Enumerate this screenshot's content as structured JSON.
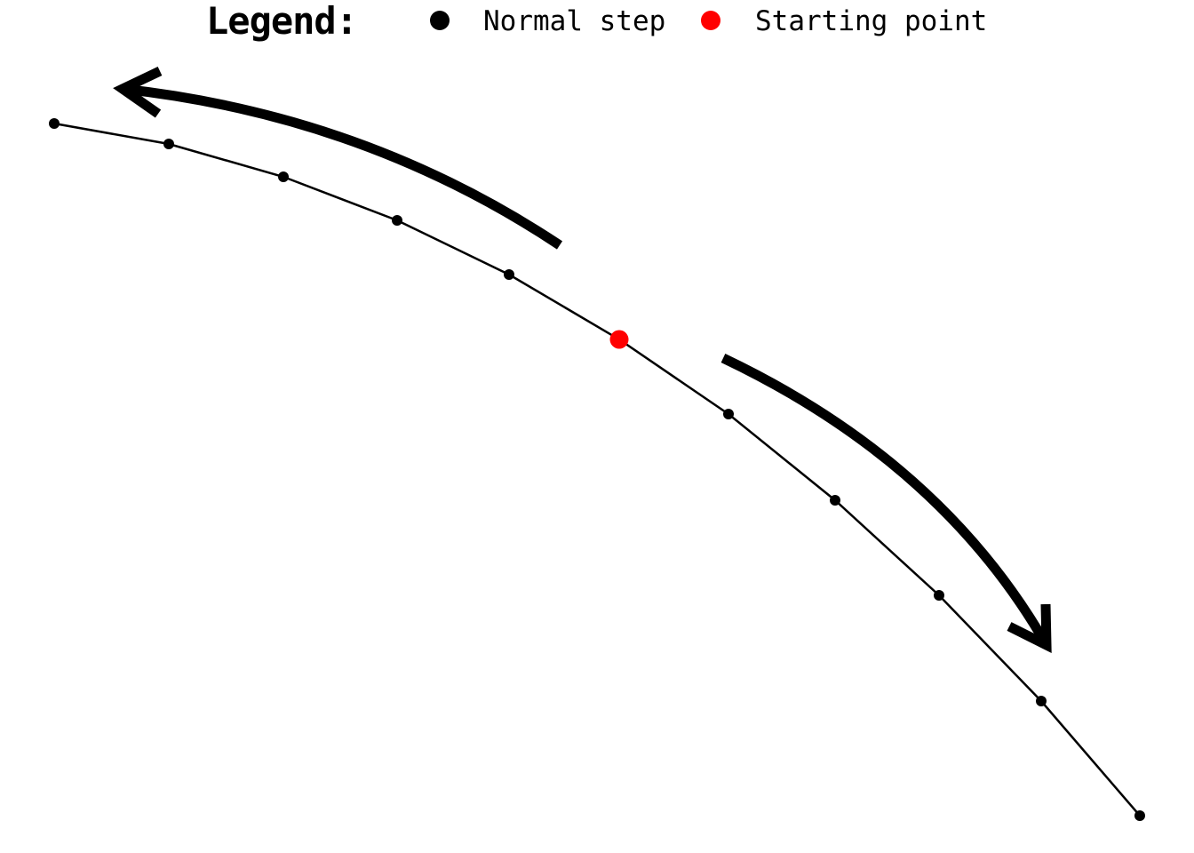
{
  "legend": {
    "title": "Legend:",
    "items": [
      {
        "label": "Normal step",
        "color": "#000000"
      },
      {
        "label": "Starting point",
        "color": "#ff0000"
      }
    ]
  },
  "colors": {
    "path": "#000000",
    "normal_step": "#000000",
    "starting_point": "#ff0000",
    "arrow": "#000000"
  },
  "icons": {
    "left_arrow": "curved-arrow-left-icon",
    "right_arrow": "curved-arrow-down-right-icon"
  }
}
